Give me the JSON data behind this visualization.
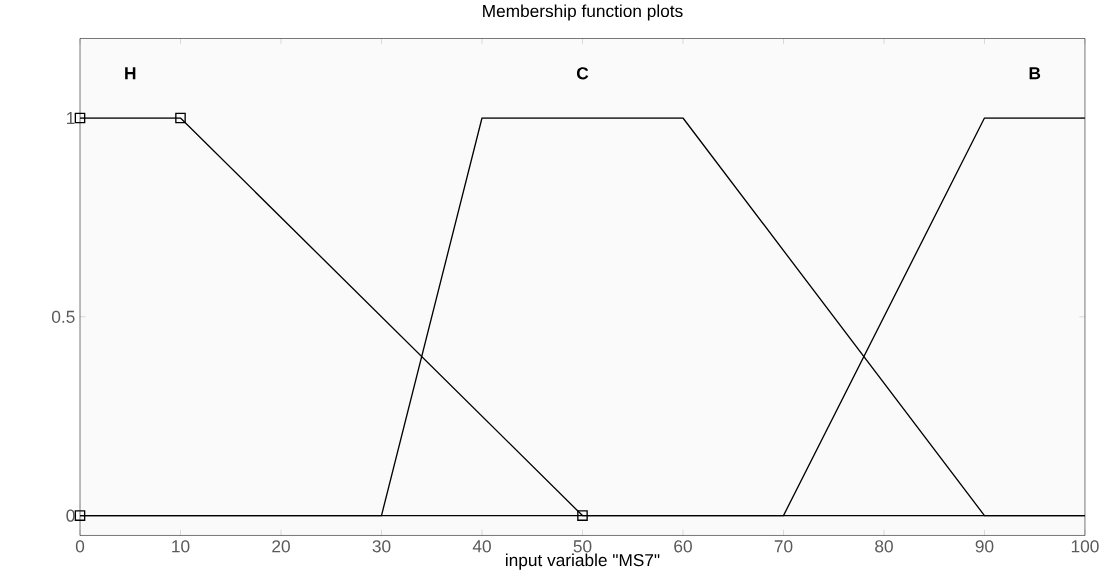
{
  "chart_data": {
    "type": "line",
    "title": "Membership function plots",
    "xlabel": "input variable \"MS7\"",
    "xlim": [
      0,
      100
    ],
    "ylim": [
      -0.05,
      1.2
    ],
    "xticks": [
      0,
      10,
      20,
      30,
      40,
      50,
      60,
      70,
      80,
      90,
      100
    ],
    "yticks": [
      0,
      0.5,
      1
    ],
    "series": [
      {
        "name": "H",
        "color": "#000000",
        "x": [
          0,
          10,
          50,
          100
        ],
        "values": [
          1,
          1,
          0,
          0
        ]
      },
      {
        "name": "C",
        "color": "#000000",
        "x": [
          0,
          30,
          40,
          60,
          90,
          100
        ],
        "values": [
          0,
          0,
          1,
          1,
          0,
          0
        ]
      },
      {
        "name": "B",
        "color": "#000000",
        "x": [
          0,
          70,
          90,
          100
        ],
        "values": [
          0,
          0,
          1,
          1
        ]
      },
      {
        "type": "scatter",
        "marker": "square",
        "color": "#000000",
        "x": [
          0,
          0,
          10,
          50
        ],
        "values": [
          0,
          1,
          1,
          0
        ]
      }
    ]
  }
}
